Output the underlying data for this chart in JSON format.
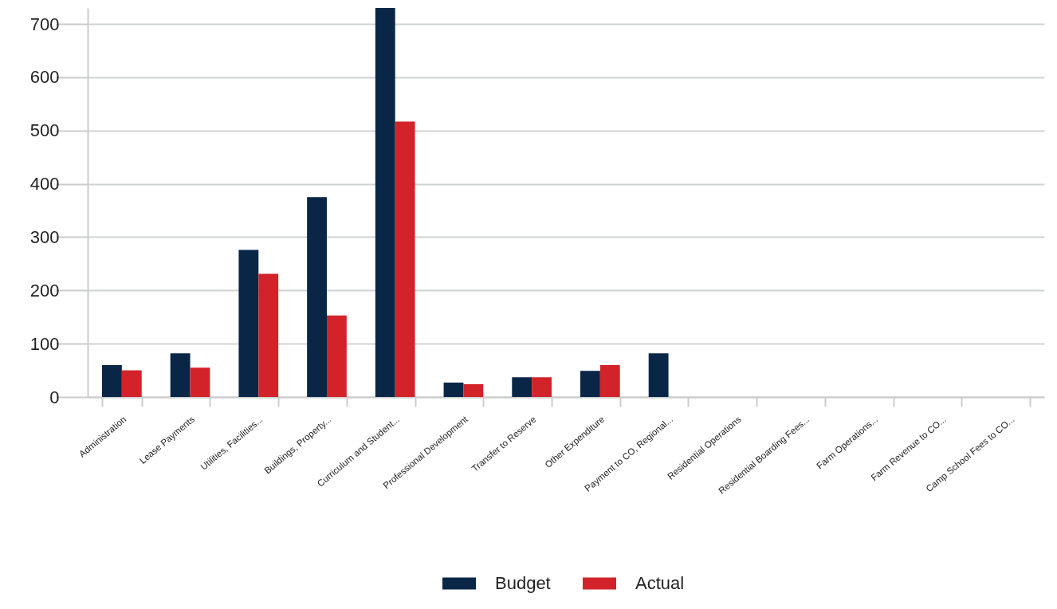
{
  "chart_data": {
    "type": "bar",
    "categories": [
      "Administration",
      "Lease Payments",
      "Utilities, Facilities...",
      "Buildings, Property...",
      "Curriculum and Student...",
      "Professional Development",
      "Transfer to Reserve",
      "Other Expenditure",
      "Payment to CO, Regional...",
      "Residential Operations",
      "Residential Boarding Fees...",
      "Farm Operations...",
      "Farm Revenue to CO...",
      "Camp School Fees to CO..."
    ],
    "series": [
      {
        "name": "Budget",
        "color": "#0a2647",
        "values": [
          60,
          82,
          276,
          375,
          730,
          27,
          37,
          49,
          82,
          null,
          null,
          null,
          null,
          null
        ]
      },
      {
        "name": "Actual",
        "color": "#d3232a",
        "values": [
          50,
          55,
          231,
          153,
          517,
          24,
          37,
          60,
          null,
          null,
          null,
          null,
          null,
          null
        ]
      }
    ],
    "ylim": [
      0,
      730
    ],
    "yticks": [
      0,
      100,
      200,
      300,
      400,
      500,
      600,
      700
    ],
    "grid": "y",
    "legend": "bottom"
  }
}
